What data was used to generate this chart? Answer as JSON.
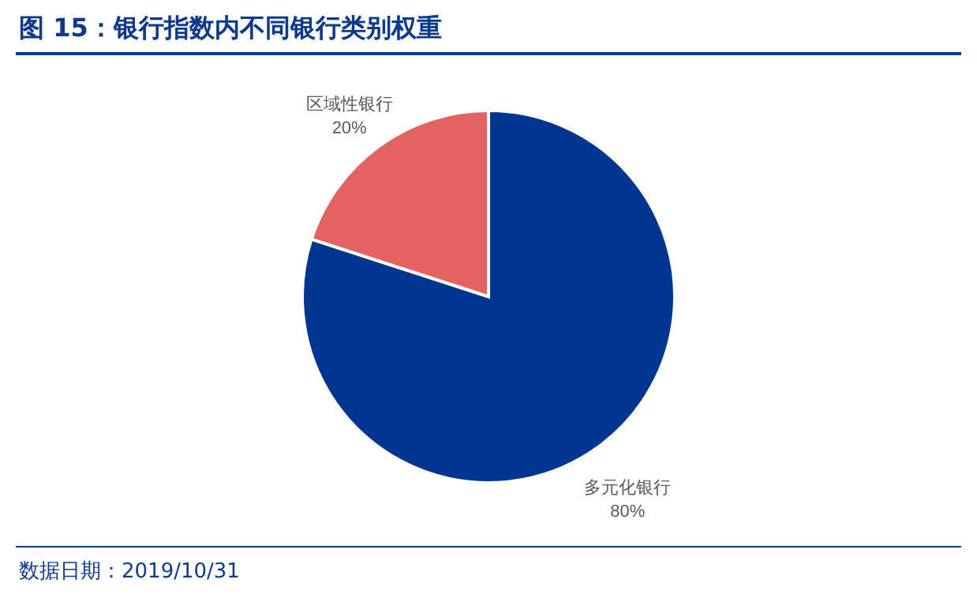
{
  "chart_data": {
    "type": "pie",
    "title": "图 15：银行指数内不同银行类别权重",
    "categories": [
      "多元化银行",
      "区域性银行"
    ],
    "values": [
      80,
      20
    ],
    "value_labels": [
      "80%",
      "20%"
    ],
    "colors": [
      "#003591",
      "#e46262"
    ],
    "annotations": [
      "数据日期：2019/10/31"
    ]
  }
}
